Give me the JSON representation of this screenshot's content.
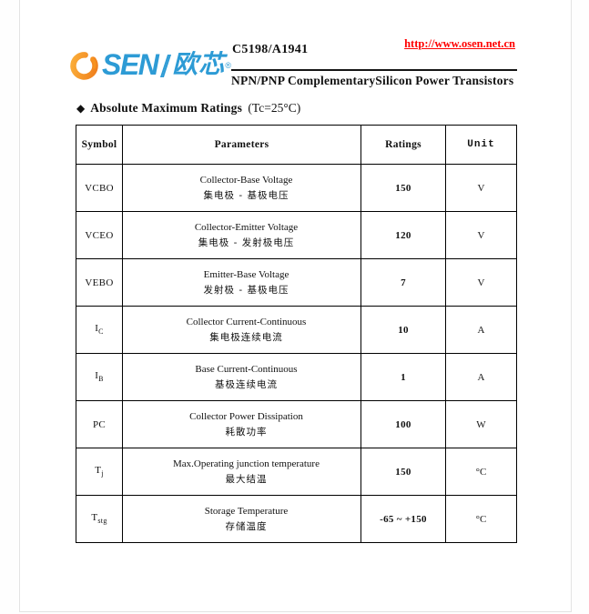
{
  "header": {
    "website_link": "http://www.osen.net.cn",
    "logo": {
      "brand_latin": "SEN",
      "brand_cn": "欧芯",
      "trademark": "®"
    },
    "part_number": "C5198/A1941",
    "subtitle": "NPN/PNP ComplementarySilicon Power Transistors"
  },
  "section": {
    "bullet": "◆",
    "title": "Absolute Maximum Ratings",
    "condition": "(Tc=25°C)"
  },
  "table": {
    "headers": [
      "Symbol",
      "Parameters",
      "Ratings",
      "Unit"
    ],
    "rows": [
      {
        "symbol": "VCBO",
        "symbol_sub": "",
        "param_en": "Collector-Base Voltage",
        "param_cn": "集电极 - 基极电压",
        "rating": "150",
        "unit": "V"
      },
      {
        "symbol": "VCEO",
        "symbol_sub": "",
        "param_en": "Collector-Emitter Voltage",
        "param_cn": "集电极 - 发射极电压",
        "rating": "120",
        "unit": "V"
      },
      {
        "symbol": "VEBO",
        "symbol_sub": "",
        "param_en": "Emitter-Base Voltage",
        "param_cn": "发射极 - 基极电压",
        "rating": "7",
        "unit": "V"
      },
      {
        "symbol": "I",
        "symbol_sub": "C",
        "param_en": "Collector Current-Continuous",
        "param_cn": "集电极连续电流",
        "rating": "10",
        "unit": "A"
      },
      {
        "symbol": "I",
        "symbol_sub": "B",
        "param_en": "Base Current-Continuous",
        "param_cn": "基极连续电流",
        "rating": "1",
        "unit": "A"
      },
      {
        "symbol": "PC",
        "symbol_sub": "",
        "param_en": "Collector Power Dissipation",
        "param_cn": "耗散功率",
        "rating": "100",
        "unit": "W"
      },
      {
        "symbol": "T",
        "symbol_sub": "j",
        "param_en": "Max.Operating junction temperature",
        "param_cn": "最大结温",
        "rating": "150",
        "unit": "°C"
      },
      {
        "symbol": "T",
        "symbol_sub": "stg",
        "param_en": "Storage Temperature",
        "param_cn": "存储温度",
        "rating": "-65 ~ +150",
        "unit": "°C"
      }
    ]
  },
  "colors": {
    "link_red": "#ff0000",
    "logo_orange": "#f7931e",
    "logo_orange_dark": "#ef7c1a",
    "logo_blue": "#2d9bd5",
    "table_border": "#000000"
  }
}
